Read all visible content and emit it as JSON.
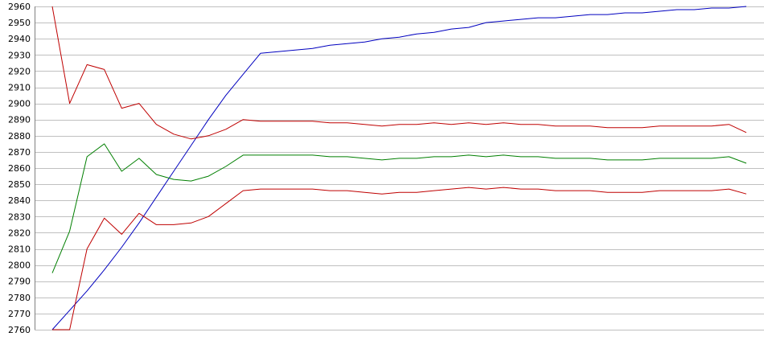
{
  "chart_data": {
    "type": "line",
    "title": "",
    "xlabel": "",
    "ylabel": "",
    "ylim": [
      2760,
      2960
    ],
    "y_ticks": [
      2760,
      2770,
      2780,
      2790,
      2800,
      2810,
      2820,
      2830,
      2840,
      2850,
      2860,
      2870,
      2880,
      2890,
      2900,
      2910,
      2920,
      2930,
      2940,
      2950,
      2960
    ],
    "y_tick_labels": [
      "2760",
      "2770",
      "2780",
      "2790",
      "2800",
      "2810",
      "2820",
      "2830",
      "2840",
      "2850",
      "2860",
      "2870",
      "2880",
      "2890",
      "2900",
      "2910",
      "2920",
      "2930",
      "2940",
      "2950",
      "2960"
    ],
    "x": [
      0,
      1,
      2,
      3,
      4,
      5,
      6,
      7,
      8,
      9,
      10,
      11,
      12,
      13,
      14,
      15,
      16,
      17,
      18,
      19,
      20,
      21,
      22,
      23,
      24,
      25,
      26,
      27,
      28,
      29,
      30,
      31,
      32,
      33,
      34,
      35,
      36,
      37,
      38,
      39,
      40
    ],
    "xlim": [
      0,
      40
    ],
    "grid": "horizontal",
    "legend": "none",
    "series": [
      {
        "color": "#0000bf",
        "values": [
          2760,
          2772,
          2784,
          2797,
          2811,
          2826,
          2842,
          2858,
          2874,
          2890,
          2905,
          2918,
          2931,
          2932,
          2933,
          2934,
          2936,
          2937,
          2938,
          2940,
          2941,
          2943,
          2944,
          2946,
          2947,
          2950,
          2951,
          2952,
          2953,
          2953,
          2954,
          2955,
          2955,
          2956,
          2956,
          2957,
          2958,
          2958,
          2959,
          2959,
          2960
        ]
      },
      {
        "color": "#bf0000",
        "values": [
          2960,
          2900,
          2924,
          2921,
          2897,
          2900,
          2887,
          2881,
          2878,
          2880,
          2884,
          2890,
          2889,
          2889,
          2889,
          2889,
          2888,
          2888,
          2887,
          2886,
          2887,
          2887,
          2888,
          2887,
          2888,
          2887,
          2888,
          2887,
          2887,
          2886,
          2886,
          2886,
          2885,
          2885,
          2885,
          2886,
          2886,
          2886,
          2886,
          2887,
          2882
        ]
      },
      {
        "color": "#007f00",
        "values": [
          2795,
          2821,
          2867,
          2875,
          2858,
          2866,
          2856,
          2853,
          2852,
          2855,
          2861,
          2868,
          2868,
          2868,
          2868,
          2868,
          2867,
          2867,
          2866,
          2865,
          2866,
          2866,
          2867,
          2867,
          2868,
          2867,
          2868,
          2867,
          2867,
          2866,
          2866,
          2866,
          2865,
          2865,
          2865,
          2866,
          2866,
          2866,
          2866,
          2867,
          2863
        ]
      },
      {
        "color": "#bf0000",
        "values": [
          2760,
          2760,
          2810,
          2829,
          2819,
          2832,
          2825,
          2825,
          2826,
          2830,
          2838,
          2846,
          2847,
          2847,
          2847,
          2847,
          2846,
          2846,
          2845,
          2844,
          2845,
          2845,
          2846,
          2847,
          2848,
          2847,
          2848,
          2847,
          2847,
          2846,
          2846,
          2846,
          2845,
          2845,
          2845,
          2846,
          2846,
          2846,
          2846,
          2847,
          2844
        ]
      }
    ]
  },
  "colors": {
    "background": "#ffffff",
    "grid": "#c0c0c0",
    "axis": "#808080"
  }
}
